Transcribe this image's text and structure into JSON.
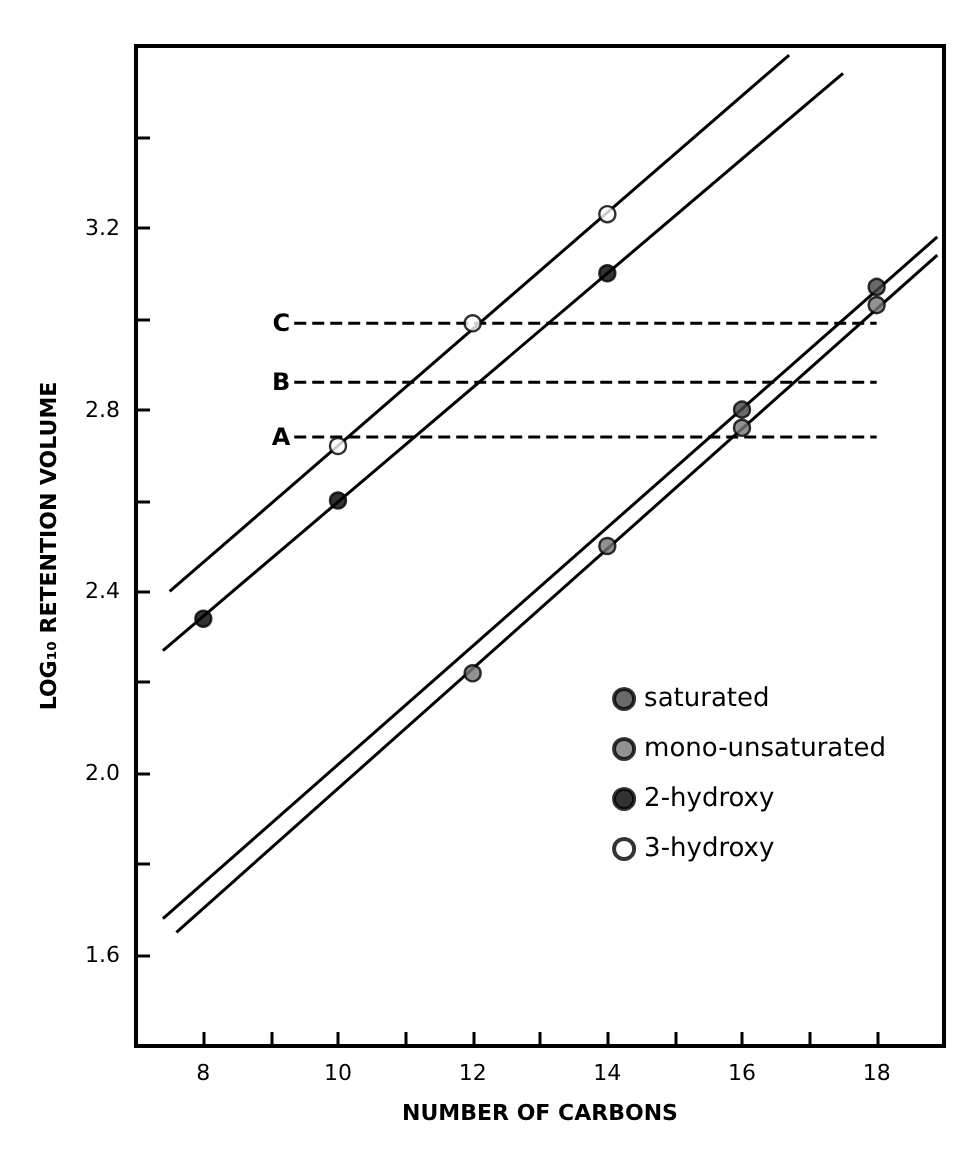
{
  "chart_data": {
    "type": "scatter",
    "xlabel": "NUMBER OF CARBONS",
    "ylabel": "LOG₁₀ RETENTION VOLUME",
    "xlim": [
      7,
      19
    ],
    "ylim": [
      1.4,
      3.6
    ],
    "xticks": [
      8,
      {
        "value": 9,
        "label": null
      },
      10,
      {
        "value": 11,
        "label": null
      },
      12,
      {
        "value": 13,
        "label": null
      },
      14,
      {
        "value": 15,
        "label": null
      },
      16,
      {
        "value": 17,
        "label": null
      },
      18
    ],
    "yticks": [
      1.6,
      {
        "value": 1.8,
        "label": null
      },
      {
        "value": 2.0,
        "label": "2.0"
      },
      {
        "value": 2.2,
        "label": null
      },
      2.4,
      {
        "value": 2.6,
        "label": null
      },
      2.8,
      {
        "value": 3.0,
        "label": null
      },
      3.2,
      {
        "value": 3.4,
        "label": null
      }
    ],
    "grid": false,
    "legend": "right",
    "marker": "circle",
    "series": [
      {
        "name": "saturated",
        "color": "#444444",
        "x": [
          16,
          18
        ],
        "values": [
          2.8,
          3.07
        ]
      },
      {
        "name": "mono-unsaturated",
        "color": "#777777",
        "x": [
          12,
          14,
          16,
          18
        ],
        "values": [
          2.22,
          2.5,
          2.76,
          3.03
        ]
      },
      {
        "name": "2-hydroxy",
        "color": "#000000",
        "x": [
          8,
          10,
          14
        ],
        "values": [
          2.34,
          2.6,
          3.1
        ]
      },
      {
        "name": "3-hydroxy",
        "color": "#ffffff",
        "x": [
          10,
          12,
          14
        ],
        "values": [
          2.72,
          2.99,
          3.23
        ]
      },
      {
        "type": "line",
        "color": "#000000",
        "marker": "none",
        "line_style": "solid",
        "x": [
          7.5,
          16.7
        ],
        "values": [
          2.4,
          3.58
        ]
      },
      {
        "type": "line",
        "color": "#000000",
        "marker": "none",
        "line_style": "solid",
        "x": [
          7.4,
          17.5
        ],
        "values": [
          2.27,
          3.54
        ]
      },
      {
        "type": "line",
        "color": "#000000",
        "marker": "none",
        "line_style": "solid",
        "x": [
          7.4,
          18.9
        ],
        "values": [
          1.68,
          3.18
        ]
      },
      {
        "type": "line",
        "color": "#000000",
        "marker": "none",
        "line_style": "solid",
        "x": [
          7.6,
          18.9
        ],
        "values": [
          1.65,
          3.14
        ]
      },
      {
        "name": "C",
        "type": "line",
        "color": "#000000",
        "marker": "none",
        "line_style": "dashed",
        "x": [
          9.35,
          18
        ],
        "values": [
          2.99,
          2.99
        ]
      },
      {
        "name": "B",
        "type": "line",
        "color": "#000000",
        "marker": "none",
        "line_style": "dashed",
        "x": [
          9.35,
          18
        ],
        "values": [
          2.86,
          2.86
        ]
      },
      {
        "name": "A",
        "type": "line",
        "color": "#000000",
        "marker": "none",
        "line_style": "dashed",
        "x": [
          9.35,
          18
        ],
        "values": [
          2.74,
          2.74
        ]
      }
    ]
  }
}
